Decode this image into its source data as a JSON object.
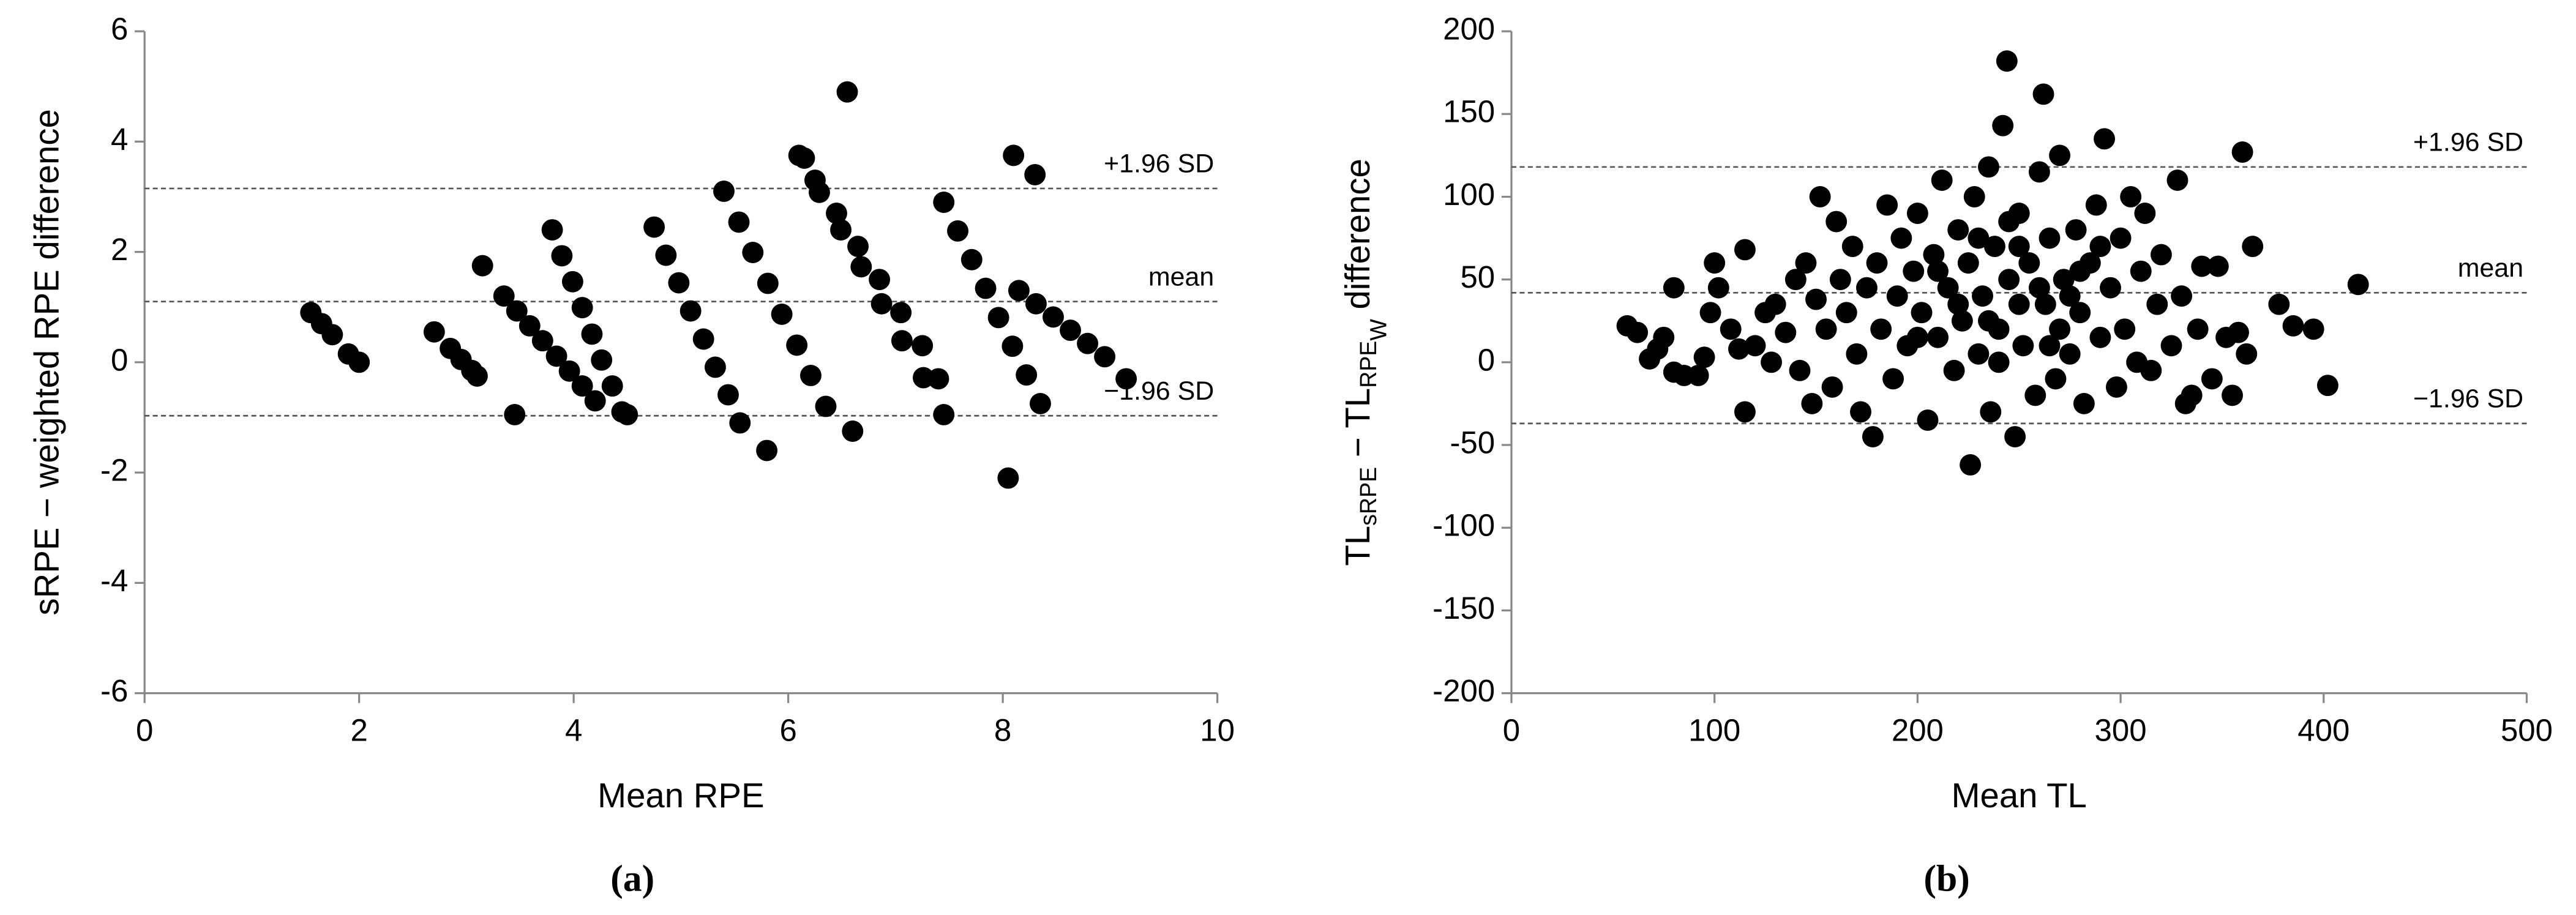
{
  "chart_data": [
    {
      "type": "scatter",
      "caption": "(a)",
      "xlabel": "Mean RPE",
      "ylabel": "sRPE − weighted RPE difference",
      "xlim": [
        0,
        10
      ],
      "xticks": [
        0,
        2,
        4,
        6,
        8,
        10
      ],
      "ylim": [
        -6,
        6
      ],
      "yticks": [
        -6,
        -4,
        -2,
        0,
        2,
        4,
        6
      ],
      "ref_lines": [
        {
          "value": 3.15,
          "label": "+1.96 SD"
        },
        {
          "value": 1.1,
          "label": "mean"
        },
        {
          "value": -0.97,
          "label": "−1.96 SD"
        }
      ],
      "series": [
        {
          "color": "#000000",
          "x": [
            1.55,
            1.65,
            1.75,
            1.9,
            2.0,
            2.7,
            2.85,
            2.95,
            3.05,
            3.1,
            3.15,
            3.35,
            3.47,
            3.59,
            3.71,
            3.84,
            3.96,
            4.08,
            4.2,
            3.8,
            3.89,
            3.99,
            4.08,
            4.17,
            4.26,
            4.36,
            4.45,
            4.75,
            4.86,
            4.98,
            5.09,
            5.21,
            5.32,
            5.44,
            5.55,
            5.4,
            5.54,
            5.67,
            5.81,
            5.94,
            6.08,
            6.21,
            6.35,
            6.1,
            6.29,
            6.49,
            6.68,
            6.87,
            7.06,
            7.26,
            7.45,
            6.25,
            6.45,
            6.65,
            6.85,
            7.05,
            7.25,
            7.4,
            7.45,
            7.58,
            7.71,
            7.84,
            7.96,
            8.09,
            8.22,
            8.35,
            8.15,
            8.31,
            8.47,
            8.63,
            8.79,
            8.95,
            3.45,
            4.5,
            5.8,
            6.55,
            6.6,
            8.05,
            8.1,
            8.3,
            9.15,
            6.15
          ],
          "values": [
            0.9,
            0.7,
            0.5,
            0.15,
            0.0,
            0.55,
            0.25,
            0.05,
            -0.15,
            -0.25,
            1.75,
            1.2,
            0.93,
            0.66,
            0.39,
            0.11,
            -0.16,
            -0.43,
            -0.7,
            2.4,
            1.93,
            1.46,
            0.99,
            0.51,
            0.04,
            -0.43,
            -0.9,
            2.45,
            1.94,
            1.44,
            0.93,
            0.42,
            -0.09,
            -0.59,
            -1.1,
            3.1,
            2.54,
            1.99,
            1.43,
            0.87,
            0.31,
            -0.24,
            -0.8,
            3.75,
            3.08,
            2.4,
            1.73,
            1.06,
            0.39,
            -0.28,
            -0.95,
            3.3,
            2.7,
            2.1,
            1.5,
            0.9,
            0.3,
            -0.3,
            2.9,
            2.38,
            1.86,
            1.34,
            0.81,
            0.29,
            -0.23,
            -0.75,
            1.3,
            1.06,
            0.82,
            0.58,
            0.34,
            0.1,
            -0.95,
            -0.95,
            -1.6,
            4.9,
            -1.25,
            -2.1,
            3.75,
            3.4,
            -0.3,
            3.7
          ]
        }
      ]
    },
    {
      "type": "scatter",
      "caption": "(b)",
      "xlabel": "Mean TL",
      "ylabel": [
        {
          "text": "TL"
        },
        {
          "text": "sRPE",
          "shift": "sub"
        },
        {
          "text": " − TL"
        },
        {
          "text": "RPE",
          "shift": "sub"
        },
        {
          "text": "W",
          "shift": "sub2"
        },
        {
          "text": " difference"
        }
      ],
      "xlim": [
        0,
        500
      ],
      "xticks": [
        0,
        100,
        200,
        300,
        400,
        500
      ],
      "ylim": [
        -200,
        200
      ],
      "yticks": [
        -200,
        -150,
        -100,
        -50,
        0,
        50,
        100,
        150,
        200
      ],
      "ref_lines": [
        {
          "value": 118,
          "label": "+1.96 SD"
        },
        {
          "value": 42,
          "label": "mean"
        },
        {
          "value": -37,
          "label": "−1.96 SD"
        }
      ],
      "series": [
        {
          "color": "#000000",
          "x": [
            57,
            62,
            68,
            72,
            75,
            80,
            80,
            85,
            92,
            95,
            98,
            100,
            102,
            108,
            112,
            115,
            115,
            120,
            125,
            128,
            130,
            135,
            140,
            142,
            145,
            148,
            150,
            152,
            155,
            158,
            160,
            162,
            165,
            168,
            170,
            172,
            175,
            178,
            180,
            182,
            185,
            188,
            190,
            192,
            195,
            198,
            200,
            202,
            205,
            208,
            210,
            212,
            215,
            218,
            220,
            222,
            225,
            226,
            228,
            230,
            232,
            235,
            236,
            238,
            240,
            242,
            244,
            245,
            248,
            250,
            252,
            255,
            258,
            260,
            262,
            263,
            265,
            268,
            270,
            272,
            275,
            278,
            280,
            282,
            285,
            288,
            290,
            292,
            295,
            298,
            300,
            302,
            305,
            308,
            310,
            312,
            315,
            318,
            320,
            325,
            328,
            330,
            332,
            335,
            338,
            340,
            345,
            348,
            352,
            355,
            358,
            360,
            362,
            365,
            378,
            385,
            395,
            402,
            417,
            210,
            230,
            250,
            270,
            240,
            260,
            220,
            280,
            200,
            290,
            250,
            235,
            265,
            245,
            275
          ],
          "values": [
            22,
            18,
            2,
            8,
            15,
            -6,
            45,
            -8,
            -8,
            3,
            30,
            60,
            45,
            20,
            8,
            -30,
            68,
            10,
            30,
            0,
            35,
            18,
            50,
            -5,
            60,
            -25,
            38,
            100,
            20,
            -15,
            85,
            50,
            30,
            70,
            5,
            -30,
            45,
            -45,
            60,
            20,
            95,
            -10,
            40,
            75,
            10,
            55,
            90,
            30,
            -35,
            65,
            15,
            110,
            45,
            -5,
            80,
            25,
            60,
            -62,
            100,
            5,
            40,
            118,
            -30,
            70,
            20,
            143,
            182,
            50,
            -45,
            90,
            10,
            60,
            -20,
            115,
            162,
            35,
            75,
            -10,
            125,
            50,
            5,
            80,
            30,
            -25,
            60,
            95,
            15,
            135,
            45,
            -15,
            75,
            20,
            100,
            0,
            55,
            90,
            -5,
            35,
            65,
            10,
            110,
            40,
            -25,
            -20,
            20,
            58,
            -10,
            58,
            15,
            -20,
            18,
            127,
            5,
            70,
            35,
            22,
            20,
            -14,
            47,
            55,
            75,
            35,
            20,
            0,
            45,
            35,
            55,
            15,
            70,
            70,
            25,
            10,
            85,
            40
          ]
        }
      ]
    }
  ]
}
